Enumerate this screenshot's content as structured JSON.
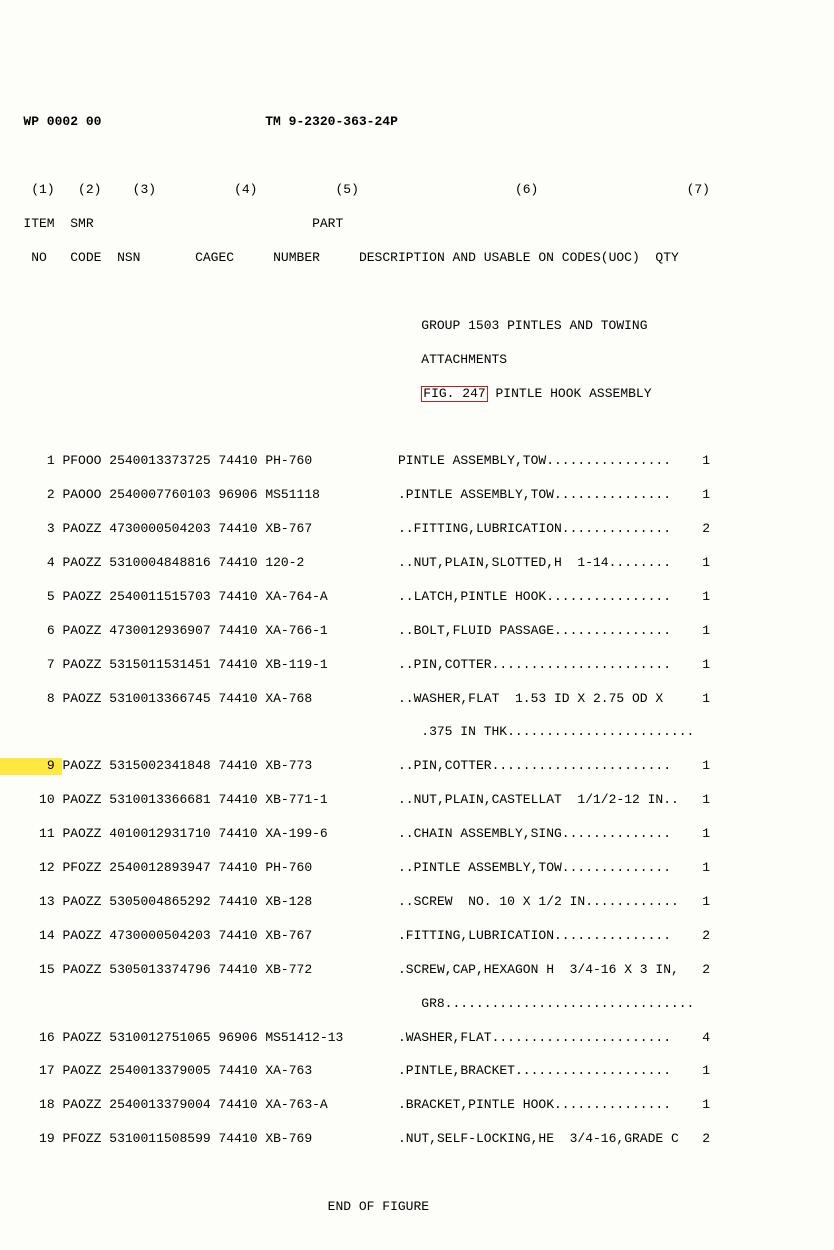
{
  "hdr": {
    "wp": "WP 0002 00",
    "tm": "TM 9-2320-363-24P"
  },
  "cols": {
    "n1": "(1)",
    "n2": "(2)",
    "n3": "(3)",
    "n4": "(4)",
    "n5": "(5)",
    "n6": "(6)",
    "n7": "(7)",
    "item": "ITEM",
    "smr": "SMR",
    "part": "PART",
    "no": "NO",
    "code": "CODE",
    "nsn": "NSN",
    "cagec": "CAGEC",
    "number": "NUMBER",
    "desc": "DESCRIPTION AND USABLE ON CODES(UOC)",
    "qty": "QTY"
  },
  "grp": {
    "l1": "GROUP 1503 PINTLES AND TOWING",
    "l2": "ATTACHMENTS",
    "fig": "FIG. 247",
    "figrest": " PINTLE HOOK ASSEMBLY"
  },
  "rows": {
    "r1": {
      "no": "1",
      "smr": "PFOOO",
      "nsn": "2540013373725",
      "cag": "74410",
      "pn": "PH-760",
      "desc": "PINTLE ASSEMBLY,TOW................",
      "qty": "1"
    },
    "r2": {
      "no": "2",
      "smr": "PAOOO",
      "nsn": "2540007760103",
      "cag": "96906",
      "pn": "MS51118",
      "desc": ".PINTLE ASSEMBLY,TOW...............",
      "qty": "1"
    },
    "r3": {
      "no": "3",
      "smr": "PAOZZ",
      "nsn": "4730000504203",
      "cag": "74410",
      "pn": "XB-767",
      "desc": "..FITTING,LUBRICATION..............",
      "qty": "2"
    },
    "r4": {
      "no": "4",
      "smr": "PAOZZ",
      "nsn": "5310004848816",
      "cag": "74410",
      "pn": "120-2",
      "desc": "..NUT,PLAIN,SLOTTED,H  1-14........",
      "qty": "1"
    },
    "r5": {
      "no": "5",
      "smr": "PAOZZ",
      "nsn": "2540011515703",
      "cag": "74410",
      "pn": "XA-764-A",
      "desc": "..LATCH,PINTLE HOOK................",
      "qty": "1"
    },
    "r6": {
      "no": "6",
      "smr": "PAOZZ",
      "nsn": "4730012936907",
      "cag": "74410",
      "pn": "XA-766-1",
      "desc": "..BOLT,FLUID PASSAGE...............",
      "qty": "1"
    },
    "r7": {
      "no": "7",
      "smr": "PAOZZ",
      "nsn": "5315011531451",
      "cag": "74410",
      "pn": "XB-119-1",
      "desc": "..PIN,COTTER.......................",
      "qty": "1"
    },
    "r8": {
      "no": "8",
      "smr": "PAOZZ",
      "nsn": "5310013366745",
      "cag": "74410",
      "pn": "XA-768",
      "desc": "..WASHER,FLAT  1.53 ID X 2.75 OD X",
      "qty": "1"
    },
    "r8b": {
      "desc": ".375 IN THK........................"
    },
    "r9": {
      "no": "9",
      "smr": "PAOZZ",
      "nsn": "5315002341848",
      "cag": "74410",
      "pn": "XB-773",
      "desc": "..PIN,COTTER.......................",
      "qty": "1"
    },
    "r10": {
      "no": "10",
      "smr": "PAOZZ",
      "nsn": "5310013366681",
      "cag": "74410",
      "pn": "XB-771-1",
      "desc": "..NUT,PLAIN,CASTELLAT  1/1/2-12 IN..",
      "qty": "1"
    },
    "r11": {
      "no": "11",
      "smr": "PAOZZ",
      "nsn": "4010012931710",
      "cag": "74410",
      "pn": "XA-199-6",
      "desc": "..CHAIN ASSEMBLY,SING..............",
      "qty": "1"
    },
    "r12": {
      "no": "12",
      "smr": "PFOZZ",
      "nsn": "2540012893947",
      "cag": "74410",
      "pn": "PH-760",
      "desc": "..PINTLE ASSEMBLY,TOW..............",
      "qty": "1"
    },
    "r13": {
      "no": "13",
      "smr": "PAOZZ",
      "nsn": "5305004865292",
      "cag": "74410",
      "pn": "XB-128",
      "desc": "..SCREW  NO. 10 X 1/2 IN............",
      "qty": "1"
    },
    "r14": {
      "no": "14",
      "smr": "PAOZZ",
      "nsn": "4730000504203",
      "cag": "74410",
      "pn": "XB-767",
      "desc": ".FITTING,LUBRICATION...............",
      "qty": "2"
    },
    "r15": {
      "no": "15",
      "smr": "PAOZZ",
      "nsn": "5305013374796",
      "cag": "74410",
      "pn": "XB-772",
      "desc": ".SCREW,CAP,HEXAGON H  3/4-16 X 3 IN,",
      "qty": "2"
    },
    "r15b": {
      "desc": "GR8................................"
    },
    "r16": {
      "no": "16",
      "smr": "PAOZZ",
      "nsn": "5310012751065",
      "cag": "96906",
      "pn": "MS51412-13",
      "desc": ".WASHER,FLAT.......................",
      "qty": "4"
    },
    "r17": {
      "no": "17",
      "smr": "PAOZZ",
      "nsn": "2540013379005",
      "cag": "74410",
      "pn": "XA-763",
      "desc": ".PINTLE,BRACKET....................",
      "qty": "1"
    },
    "r18": {
      "no": "18",
      "smr": "PAOZZ",
      "nsn": "2540013379004",
      "cag": "74410",
      "pn": "XA-763-A",
      "desc": ".BRACKET,PINTLE HOOK...............",
      "qty": "1"
    },
    "r19": {
      "no": "19",
      "smr": "PFOZZ",
      "nsn": "5310011508599",
      "cag": "74410",
      "pn": "XB-769",
      "desc": ".NUT,SELF-LOCKING,HE  3/4-16,GRADE C",
      "qty": "2"
    }
  },
  "foot": "END OF FIGURE"
}
